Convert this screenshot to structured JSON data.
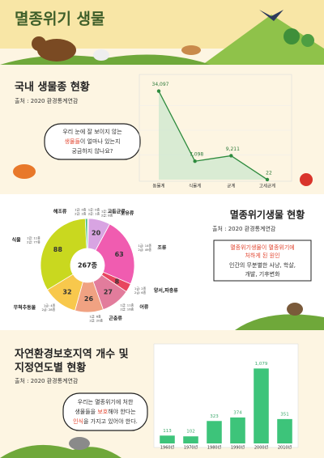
{
  "header": {
    "title": "멸종위기 생물"
  },
  "chart_data": [
    {
      "type": "line",
      "title": "국내 생물종 현황",
      "subtitle": "출처 : 2020 환경통계연감",
      "annotation": [
        "우리 눈에 잘 보이지 않는",
        "생물들",
        "이 얼마나 있는지",
        "궁금하지 않나요?"
      ],
      "categories": [
        "동물계",
        "식물계",
        "균계",
        "고세균계"
      ],
      "values": [
        34097,
        7098,
        9211,
        22
      ],
      "value_labels": [
        "34,097",
        "7,098",
        "9,211",
        "22"
      ],
      "color": "#2e8b3e",
      "ylim": [
        0,
        38000
      ]
    },
    {
      "type": "donut",
      "title": "멸종위기생물 현황",
      "subtitle": "출처 : 2020 환경통계연감",
      "annotation": [
        "멸종위기생물이 멸종위기에",
        "처하게 된 원인",
        "인간의 무분별한 사냥, 학살,",
        "개발, 기후변화"
      ],
      "center_label": "267종",
      "categories": [
        "고등균류",
        "포유류",
        "조류",
        "양서,파충류",
        "어류",
        "곤충류",
        "무척추동물",
        "식물",
        "해조류"
      ],
      "values": [
        1,
        20,
        63,
        8,
        27,
        26,
        32,
        88,
        2
      ],
      "details": [
        [
          "1급: 0종",
          "2급: 1종"
        ],
        [
          "1급: 12종",
          "2급: 8종"
        ],
        [
          "1급: 14종",
          "2급: 49종"
        ],
        [
          "1급: 2종",
          "2급: 6종"
        ],
        [
          "1급: 11종",
          "2급: 16종"
        ],
        [
          "1급: 6종",
          "2급: 20종"
        ],
        [
          "1급: 4종",
          "2급: 28종"
        ],
        [
          "1급: 11종",
          "2급: 77종"
        ],
        [
          "1급: 0종",
          "2급: 2종"
        ]
      ],
      "colors": [
        "#f2a2c8",
        "#d8a4e2",
        "#f05cb0",
        "#e8455f",
        "#e27c9c",
        "#f0a282",
        "#f8c84c",
        "#c9d81f",
        "#3fbf7d"
      ]
    },
    {
      "type": "bar",
      "title": [
        "자연환경보호지역 개수 및",
        "지정연도별 현황"
      ],
      "subtitle": "출처 : 2020 환경통계연감",
      "annotation": [
        "우리는 멸종위기에 처한",
        "생물들을 ",
        "보호",
        "해야 한다는",
        "인식",
        "을 가지고 있어야 한다."
      ],
      "categories": [
        "1960년",
        "1970년",
        "1980년",
        "1990년",
        "2000년",
        "2010년"
      ],
      "values": [
        113,
        102,
        323,
        374,
        1079,
        351
      ],
      "value_labels": [
        "113",
        "102",
        "323",
        "374",
        "1,079",
        "351"
      ],
      "color": "#3dc47a",
      "ylim": [
        0,
        1200
      ]
    }
  ]
}
